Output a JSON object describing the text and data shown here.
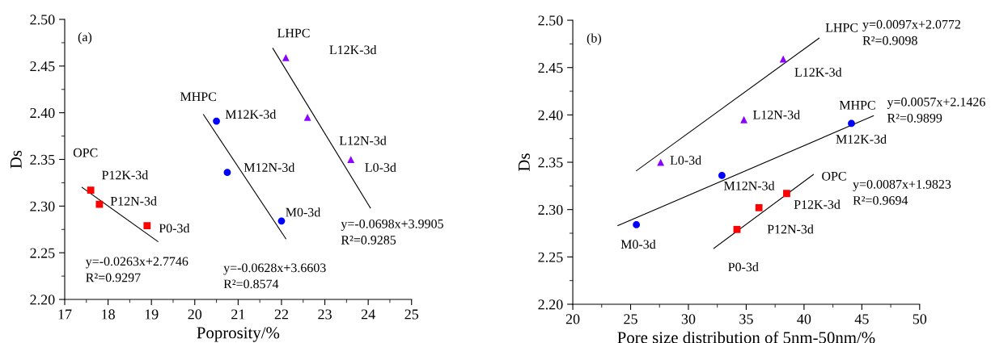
{
  "chart_data": [
    {
      "type": "scatter",
      "xlabel": "Poprosity/%",
      "ylabel": "Ds",
      "xlim": [
        17,
        25
      ],
      "xticks": [
        17,
        18,
        19,
        20,
        21,
        22,
        23,
        24,
        25
      ],
      "ylim": [
        2.2,
        2.5
      ],
      "yticks": [
        {
          "value": 2.2,
          "label": "2.20"
        },
        {
          "value": 2.25,
          "label": "2.25"
        },
        {
          "value": 2.3,
          "label": "2.30"
        },
        {
          "value": 2.35,
          "label": "2.35"
        },
        {
          "value": 2.4,
          "label": "2.40"
        },
        {
          "value": 2.45,
          "label": "2.45"
        },
        {
          "value": 2.5,
          "label": "2.50"
        }
      ],
      "series": [
        {
          "type": "scatter",
          "marker": "square",
          "color": "#ff0000",
          "x": [
            17.6,
            17.8,
            18.9
          ],
          "values": [
            2.317,
            2.302,
            2.279
          ]
        },
        {
          "type": "scatter",
          "marker": "circle",
          "color": "#0000ff",
          "x": [
            20.5,
            20.75,
            22.0
          ],
          "values": [
            2.391,
            2.336,
            2.284
          ]
        },
        {
          "type": "scatter",
          "marker": "triangle",
          "color": "#8b00ff",
          "x": [
            22.1,
            22.6,
            23.6
          ],
          "values": [
            2.459,
            2.395,
            2.35
          ]
        },
        {
          "type": "line",
          "color": "#000000",
          "x": [
            17.4,
            19.15
          ],
          "values": [
            2.32,
            2.262
          ]
        },
        {
          "type": "line",
          "color": "#000000",
          "x": [
            20.2,
            22.1
          ],
          "values": [
            2.398,
            2.265
          ]
        },
        {
          "type": "line",
          "color": "#000000",
          "x": [
            21.8,
            24.05
          ],
          "values": [
            2.469,
            2.298
          ]
        }
      ],
      "annotations": [
        "(a)",
        "LHPC",
        "L12K-3d",
        "MHPC",
        "M12K-3d",
        "L12N-3d",
        "OPC",
        "M12N-3d",
        "L0-3d",
        "P12K-3d",
        "P12N-3d",
        "M0-3d",
        "P0-3d",
        "y=-0.0698x+3.9905\nR²=0.9285",
        "y=-0.0263x+2.7746\nR²=0.9297",
        "y=-0.0628x+3.6603\nR²=0.8574"
      ]
    },
    {
      "type": "scatter",
      "xlabel": "Pore size distribution of 5nm-50nm/%",
      "ylabel": "Ds",
      "xlim": [
        20,
        50
      ],
      "xticks": [
        20,
        25,
        30,
        35,
        40,
        45,
        50
      ],
      "ylim": [
        2.2,
        2.5
      ],
      "yticks": [
        {
          "value": 2.2,
          "label": "2.20"
        },
        {
          "value": 2.25,
          "label": "2.25"
        },
        {
          "value": 2.3,
          "label": "2.30"
        },
        {
          "value": 2.35,
          "label": "2.35"
        },
        {
          "value": 2.4,
          "label": "2.40"
        },
        {
          "value": 2.45,
          "label": "2.45"
        },
        {
          "value": 2.5,
          "label": "2.50"
        }
      ],
      "series": [
        {
          "type": "scatter",
          "marker": "triangle",
          "color": "#8b00ff",
          "x": [
            27.6,
            34.8,
            38.2
          ],
          "values": [
            2.35,
            2.395,
            2.459
          ]
        },
        {
          "type": "scatter",
          "marker": "circle",
          "color": "#0000ff",
          "x": [
            25.5,
            32.9,
            44.1
          ],
          "values": [
            2.284,
            2.336,
            2.391
          ]
        },
        {
          "type": "scatter",
          "marker": "square",
          "color": "#ff0000",
          "x": [
            34.2,
            36.1,
            38.5
          ],
          "values": [
            2.279,
            2.302,
            2.317
          ]
        },
        {
          "type": "line",
          "color": "#000000",
          "x": [
            25.5,
            41.3
          ],
          "values": [
            2.341,
            2.481
          ]
        },
        {
          "type": "line",
          "color": "#000000",
          "x": [
            23.9,
            46.0
          ],
          "values": [
            2.283,
            2.399
          ]
        },
        {
          "type": "line",
          "color": "#000000",
          "x": [
            32.2,
            40.8
          ],
          "values": [
            2.259,
            2.337
          ]
        }
      ],
      "annotations": [
        "(b)",
        "LHPC",
        "y=0.0097x+2.0772\nR²=0.9098",
        "L12K-3d",
        "MHPC",
        "y=0.0057x+2.1426\nR²=0.9899",
        "L12N-3d",
        "M12K-3d",
        "L0-3d",
        "OPC",
        "y=0.0087x+1.9823\nR²=0.9694",
        "M12N-3d",
        "P12K-3d",
        "P12N-3d",
        "M0-3d",
        "P0-3d"
      ]
    }
  ]
}
